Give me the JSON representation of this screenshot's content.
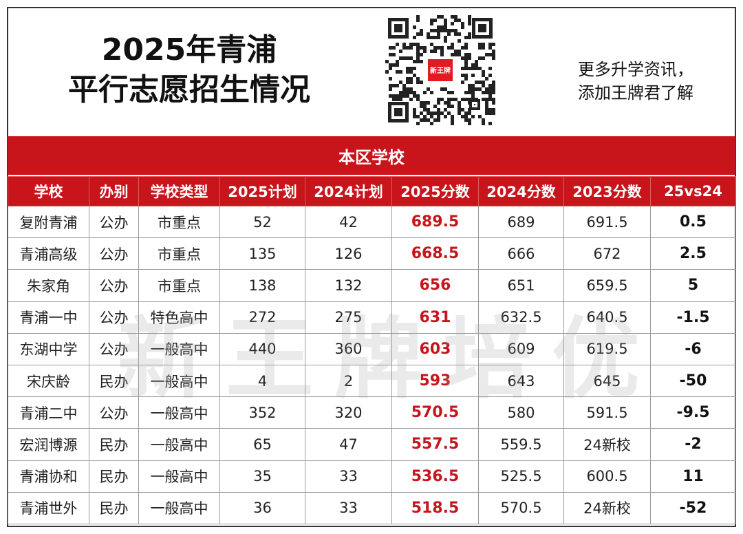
{
  "title": {
    "line1": "2025年青浦",
    "line2": "平行志愿招生情况"
  },
  "qr": {
    "badge_text": "新王牌"
  },
  "promo": {
    "line1": "更多升学资讯，",
    "line2": "添加王牌君了解"
  },
  "section_title": "本区学校",
  "watermark": "新王牌培优",
  "table": {
    "headers": [
      "学校",
      "办别",
      "学校类型",
      "2025计划",
      "2024计划",
      "2025分数",
      "2024分数",
      "2023分数",
      "25vs24"
    ],
    "rows": [
      [
        "复附青浦",
        "公办",
        "市重点",
        "52",
        "42",
        "689.5",
        "689",
        "691.5",
        "0.5"
      ],
      [
        "青浦高级",
        "公办",
        "市重点",
        "135",
        "126",
        "668.5",
        "666",
        "672",
        "2.5"
      ],
      [
        "朱家角",
        "公办",
        "市重点",
        "138",
        "132",
        "656",
        "651",
        "659.5",
        "5"
      ],
      [
        "青浦一中",
        "公办",
        "特色高中",
        "272",
        "275",
        "631",
        "632.5",
        "640.5",
        "-1.5"
      ],
      [
        "东湖中学",
        "公办",
        "一般高中",
        "440",
        "360",
        "603",
        "609",
        "619.5",
        "-6"
      ],
      [
        "宋庆龄",
        "民办",
        "一般高中",
        "4",
        "2",
        "593",
        "643",
        "645",
        "-50"
      ],
      [
        "青浦二中",
        "公办",
        "一般高中",
        "352",
        "320",
        "570.5",
        "580",
        "591.5",
        "-9.5"
      ],
      [
        "宏润博源",
        "民办",
        "一般高中",
        "65",
        "47",
        "557.5",
        "559.5",
        "24新校",
        "-2"
      ],
      [
        "青浦协和",
        "民办",
        "一般高中",
        "35",
        "33",
        "536.5",
        "525.5",
        "600.5",
        "11"
      ],
      [
        "青浦世外",
        "民办",
        "一般高中",
        "36",
        "33",
        "518.5",
        "570.5",
        "24新校",
        "-52"
      ]
    ]
  },
  "colors": {
    "accent": "#c8141b",
    "header_text": "#ffffff"
  }
}
